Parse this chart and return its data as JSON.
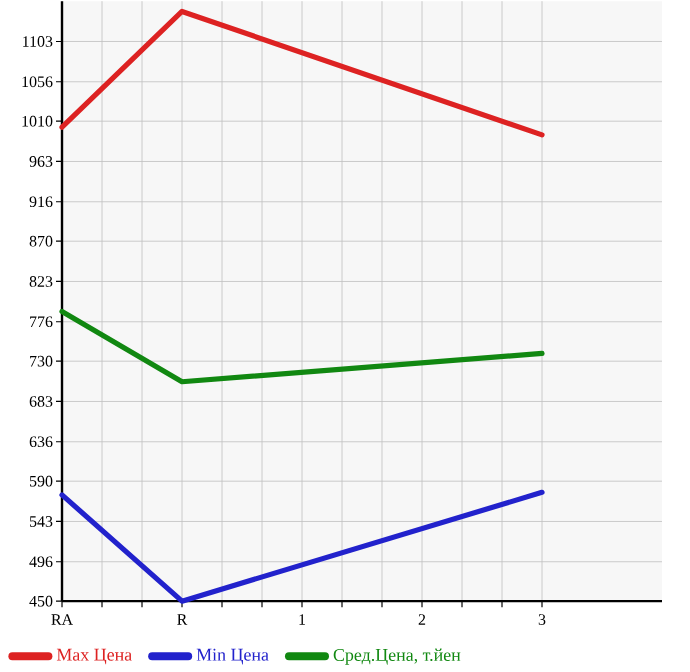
{
  "chart_data": {
    "type": "line",
    "categories": [
      "RA",
      "R",
      "1",
      "2",
      "3"
    ],
    "series": [
      {
        "name": "Max Цена",
        "color": "#dd2222",
        "values": [
          1003,
          1138,
          null,
          null,
          994
        ]
      },
      {
        "name": "Min Цена",
        "color": "#2222cc",
        "values": [
          574,
          450,
          null,
          null,
          577
        ]
      },
      {
        "name": "Сред.Цена, т.йен",
        "color": "#118811",
        "values": [
          788,
          706,
          null,
          null,
          739
        ]
      }
    ],
    "ylim": [
      450,
      1150
    ],
    "yticks": [
      450,
      496,
      543,
      590,
      636,
      683,
      730,
      776,
      823,
      870,
      916,
      963,
      1010,
      1056,
      1103
    ],
    "grid": true,
    "legend": "bottom",
    "marker": "none",
    "line_style": "solid"
  }
}
